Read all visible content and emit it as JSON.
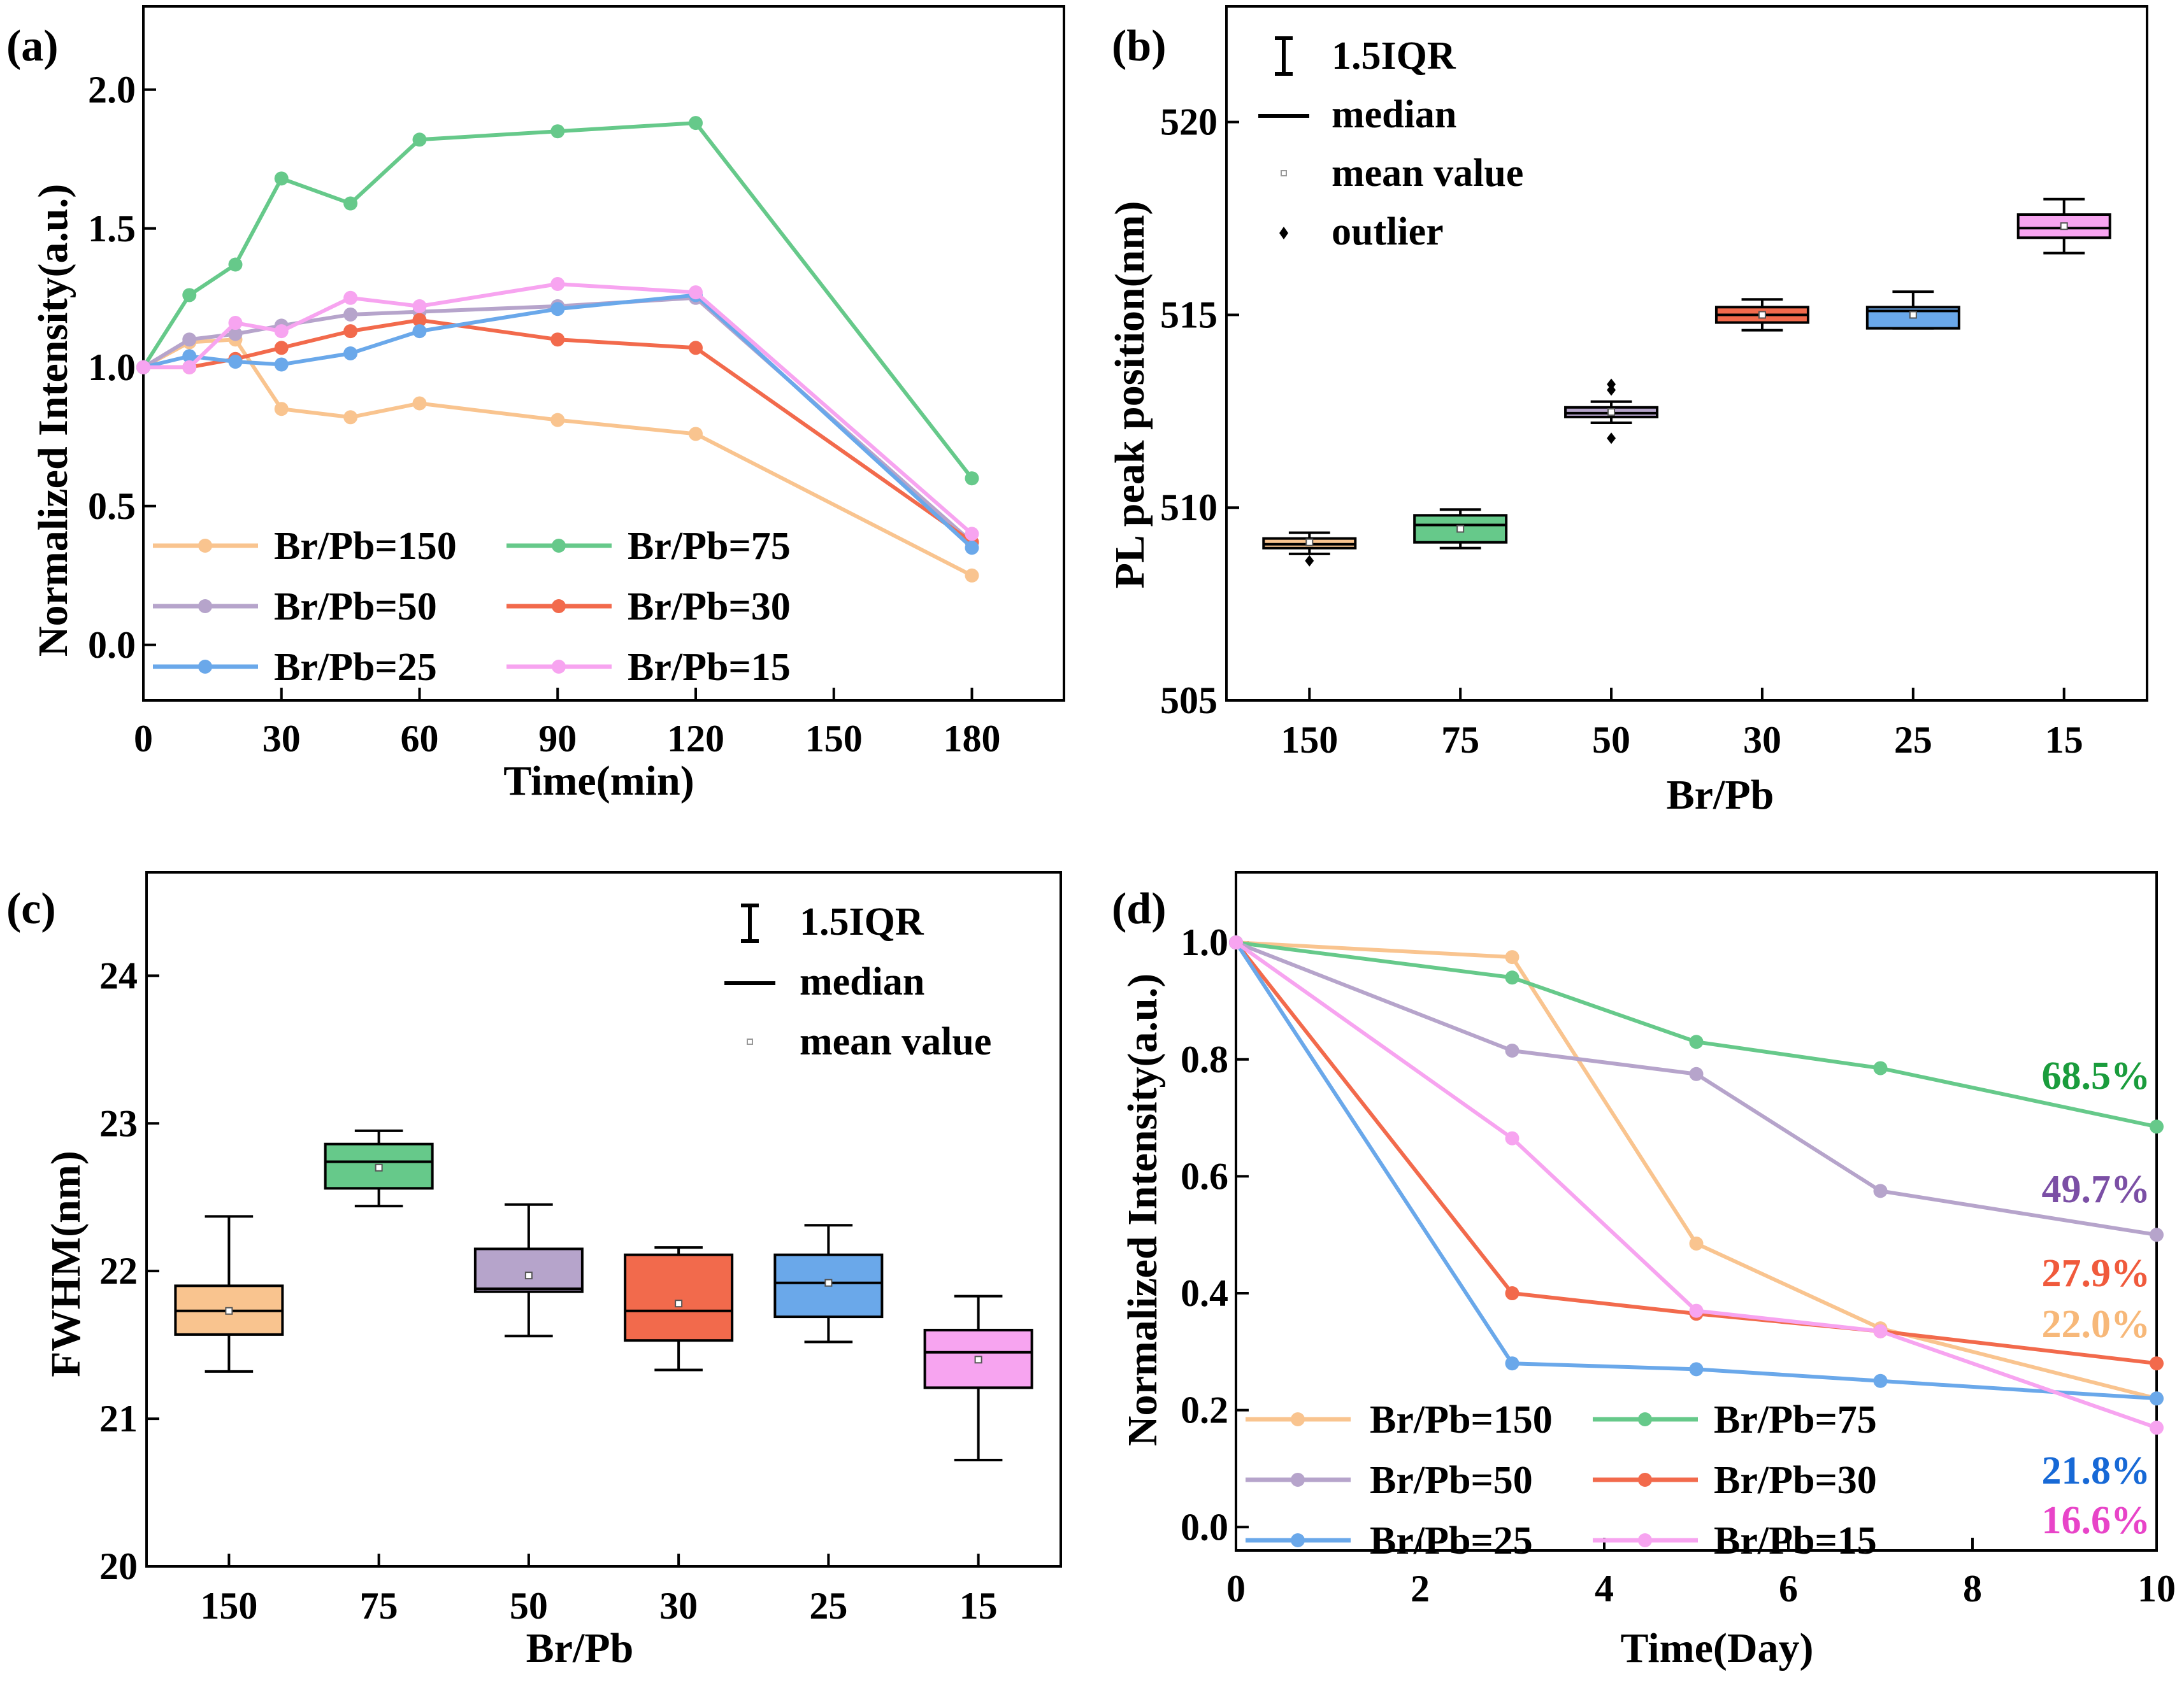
{
  "colors": {
    "150": "#f9c48f",
    "75": "#66c98a",
    "50": "#b6a4cb",
    "30": "#f26a4c",
    "25": "#6aa8ea",
    "15": "#f7a4f0",
    "pct150": "#f7b879",
    "pct75": "#1a9c3c",
    "pct50": "#7b4fa5",
    "pct30": "#f05a3c",
    "pct25": "#1769d6",
    "pct15": "#e844c8"
  },
  "chart_data": [
    {
      "panel": "(a)",
      "type": "line",
      "xlabel": "Time(min)",
      "ylabel": "Normalized Intensity(a.u.)",
      "xlim": [
        0,
        200
      ],
      "ylim": [
        -0.2,
        2.3
      ],
      "xticks": [
        "0",
        "30",
        "60",
        "90",
        "120",
        "150",
        "180"
      ],
      "yticks": [
        "0.0",
        "0.5",
        "1.0",
        "1.5",
        "2.0"
      ],
      "x": [
        0,
        10,
        20,
        30,
        45,
        60,
        90,
        120,
        180
      ],
      "series": [
        {
          "key": "150",
          "name": "Br/Pb=150",
          "values": [
            1.0,
            1.09,
            1.1,
            0.85,
            0.82,
            0.87,
            0.81,
            0.76,
            0.25
          ]
        },
        {
          "key": "75",
          "name": "Br/Pb=75",
          "values": [
            1.0,
            1.26,
            1.37,
            1.68,
            1.59,
            1.82,
            1.85,
            1.88,
            0.6
          ]
        },
        {
          "key": "50",
          "name": "Br/Pb=50",
          "values": [
            1.0,
            1.1,
            1.12,
            1.15,
            1.19,
            1.2,
            1.22,
            1.25,
            0.37
          ]
        },
        {
          "key": "30",
          "name": "Br/Pb=30",
          "values": [
            1.0,
            1.0,
            1.03,
            1.07,
            1.13,
            1.17,
            1.1,
            1.07,
            0.37
          ]
        },
        {
          "key": "25",
          "name": "Br/Pb=25",
          "values": [
            1.0,
            1.04,
            1.02,
            1.01,
            1.05,
            1.13,
            1.21,
            1.26,
            0.35
          ]
        },
        {
          "key": "15",
          "name": "Br/Pb=15",
          "values": [
            1.0,
            1.0,
            1.16,
            1.13,
            1.25,
            1.22,
            1.3,
            1.27,
            0.4
          ]
        }
      ]
    },
    {
      "panel": "(b)",
      "type": "box",
      "xlabel": "Br/Pb",
      "ylabel": "PL peak position(nm)",
      "ylim": [
        505,
        523
      ],
      "yticks": [
        "505",
        "510",
        "515",
        "520"
      ],
      "categories": [
        "150",
        "75",
        "50",
        "30",
        "25",
        "15"
      ],
      "boxes": [
        {
          "key": "150",
          "whisker_low": 508.8,
          "q1": 508.95,
          "median": 509.05,
          "q3": 509.2,
          "whisker_high": 509.35,
          "mean": 509.1,
          "outliers": [
            508.62
          ]
        },
        {
          "key": "75",
          "whisker_low": 508.95,
          "q1": 509.1,
          "median": 509.55,
          "q3": 509.8,
          "whisker_high": 509.95,
          "mean": 509.45,
          "outliers": []
        },
        {
          "key": "50",
          "whisker_low": 512.2,
          "q1": 512.35,
          "median": 512.45,
          "q3": 512.6,
          "whisker_high": 512.75,
          "mean": 512.48,
          "outliers": [
            513.05,
            513.2,
            511.8
          ]
        },
        {
          "key": "30",
          "whisker_low": 514.6,
          "q1": 514.8,
          "median": 515.0,
          "q3": 515.2,
          "whisker_high": 515.4,
          "mean": 515.0,
          "outliers": []
        },
        {
          "key": "25",
          "whisker_low": 514.65,
          "q1": 514.65,
          "median": 515.1,
          "q3": 515.2,
          "whisker_high": 515.6,
          "mean": 515.0,
          "outliers": []
        },
        {
          "key": "15",
          "whisker_low": 516.6,
          "q1": 517.0,
          "median": 517.25,
          "q3": 517.6,
          "whisker_high": 518.0,
          "mean": 517.3,
          "outliers": []
        }
      ],
      "legend": [
        "1.5IQR",
        "median",
        "mean value",
        "outlier"
      ]
    },
    {
      "panel": "(c)",
      "type": "box",
      "xlabel": "Br/Pb",
      "ylabel": "FWHM(nm)",
      "ylim": [
        20,
        24.7
      ],
      "yticks": [
        "20",
        "21",
        "22",
        "23",
        "24"
      ],
      "categories": [
        "150",
        "75",
        "50",
        "30",
        "25",
        "15"
      ],
      "boxes": [
        {
          "key": "150",
          "whisker_low": 21.32,
          "q1": 21.57,
          "median": 21.73,
          "q3": 21.9,
          "whisker_high": 22.37,
          "mean": 21.73,
          "outliers": []
        },
        {
          "key": "75",
          "whisker_low": 22.44,
          "q1": 22.56,
          "median": 22.74,
          "q3": 22.86,
          "whisker_high": 22.95,
          "mean": 22.7,
          "outliers": []
        },
        {
          "key": "50",
          "whisker_low": 21.56,
          "q1": 21.86,
          "median": 21.88,
          "q3": 22.15,
          "whisker_high": 22.45,
          "mean": 21.97,
          "outliers": []
        },
        {
          "key": "30",
          "whisker_low": 21.33,
          "q1": 21.53,
          "median": 21.73,
          "q3": 22.11,
          "whisker_high": 22.16,
          "mean": 21.78,
          "outliers": []
        },
        {
          "key": "25",
          "whisker_low": 21.52,
          "q1": 21.69,
          "median": 21.92,
          "q3": 22.11,
          "whisker_high": 22.31,
          "mean": 21.92,
          "outliers": []
        },
        {
          "key": "15",
          "whisker_low": 20.72,
          "q1": 21.21,
          "median": 21.45,
          "q3": 21.6,
          "whisker_high": 21.83,
          "mean": 21.4,
          "outliers": []
        }
      ],
      "legend": [
        "1.5IQR",
        "median",
        "mean value"
      ]
    },
    {
      "panel": "(d)",
      "type": "line",
      "xlabel": "Time(Day)",
      "ylabel": "Normalized Intensity(a.u.)",
      "xlim": [
        0,
        10
      ],
      "ylim": [
        -0.04,
        1.12
      ],
      "xticks": [
        "0",
        "2",
        "4",
        "6",
        "8",
        "10"
      ],
      "yticks": [
        "0.0",
        "0.2",
        "0.4",
        "0.6",
        "0.8",
        "1.0"
      ],
      "x": [
        0,
        3,
        5,
        7,
        10
      ],
      "series": [
        {
          "key": "150",
          "name": "Br/Pb=150",
          "values": [
            1.0,
            0.975,
            0.485,
            0.34,
            0.22
          ]
        },
        {
          "key": "75",
          "name": "Br/Pb=75",
          "values": [
            1.0,
            0.94,
            0.83,
            0.785,
            0.685
          ]
        },
        {
          "key": "50",
          "name": "Br/Pb=50",
          "values": [
            1.0,
            0.815,
            0.775,
            0.575,
            0.5
          ]
        },
        {
          "key": "30",
          "name": "Br/Pb=30",
          "values": [
            1.0,
            0.4,
            0.365,
            0.335,
            0.28
          ]
        },
        {
          "key": "25",
          "name": "Br/Pb=25",
          "values": [
            1.0,
            0.28,
            0.27,
            0.25,
            0.22
          ]
        },
        {
          "key": "15",
          "name": "Br/Pb=15",
          "values": [
            1.0,
            0.665,
            0.37,
            0.335,
            0.17
          ]
        }
      ],
      "annotations": [
        {
          "key": "pct75",
          "text": "68.5%"
        },
        {
          "key": "pct50",
          "text": "49.7%"
        },
        {
          "key": "pct30",
          "text": "27.9%"
        },
        {
          "key": "pct150",
          "text": "22.0%"
        },
        {
          "key": "pct25",
          "text": "21.8%"
        },
        {
          "key": "pct15",
          "text": "16.6%"
        }
      ]
    }
  ]
}
